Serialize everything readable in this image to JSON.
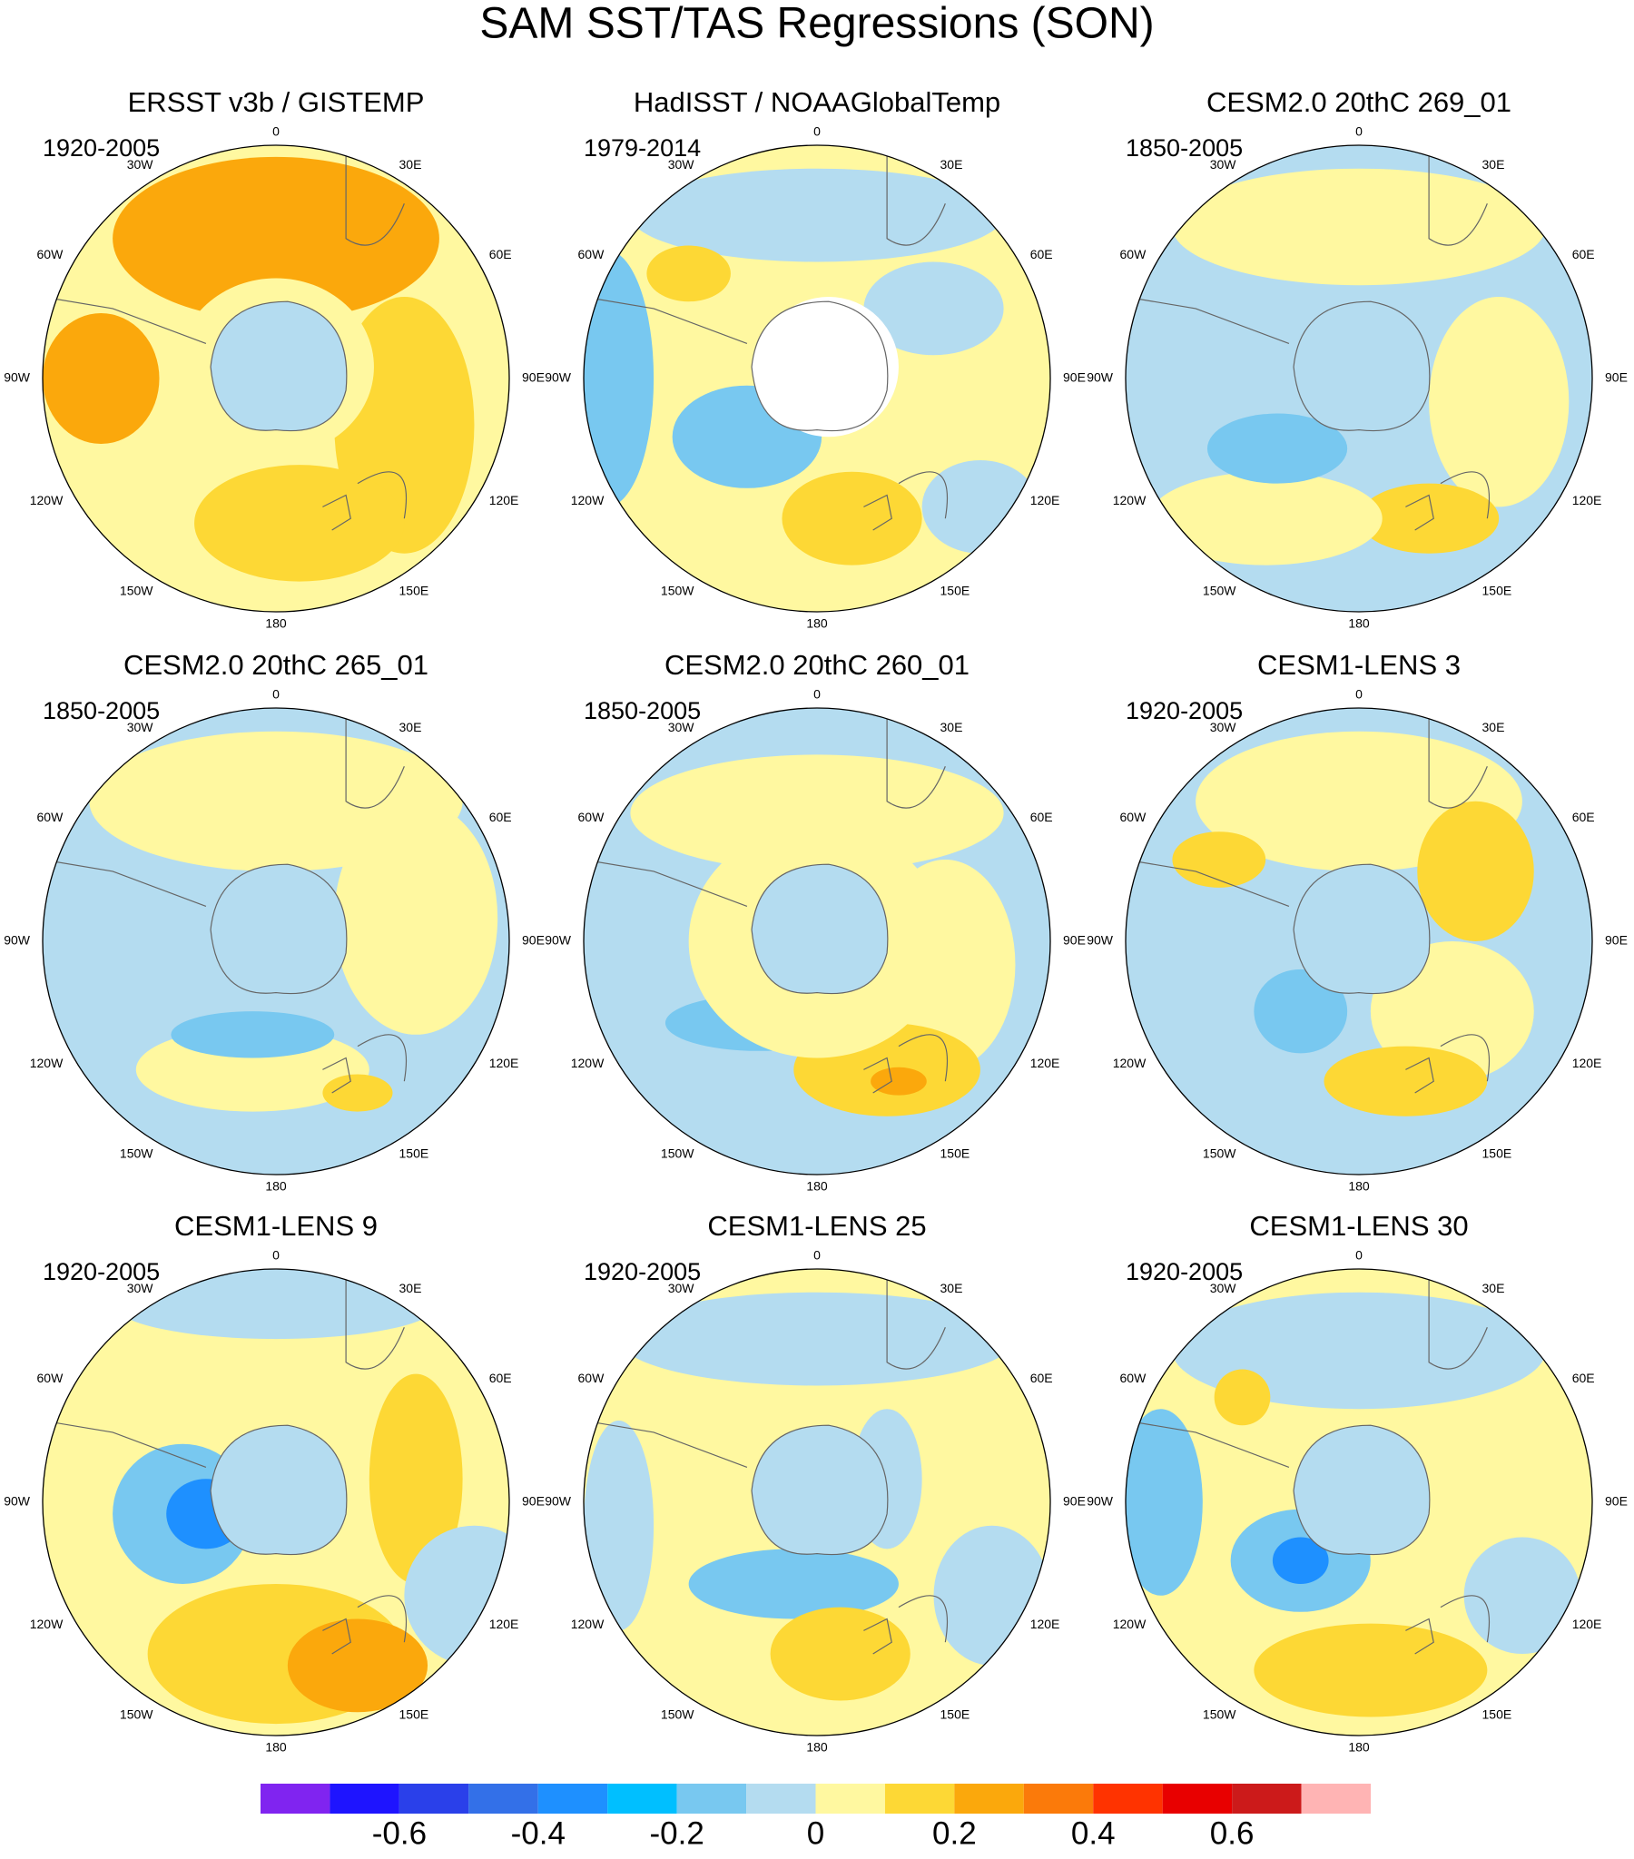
{
  "title": "SAM SST/TAS Regressions (SON)",
  "longitude_labels": [
    "0",
    "30E",
    "60E",
    "90E",
    "120E",
    "150E",
    "180",
    "150W",
    "120W",
    "90W",
    "60W",
    "30W"
  ],
  "panels": [
    {
      "title": "ERSST v3b / GISTEMP",
      "period": "1920-2005"
    },
    {
      "title": "HadISST / NOAAGlobalTemp",
      "period": "1979-2014"
    },
    {
      "title": "CESM2.0 20thC 269_01",
      "period": "1850-2005"
    },
    {
      "title": "CESM2.0 20thC 265_01",
      "period": "1850-2005"
    },
    {
      "title": "CESM2.0 20thC 260_01",
      "period": "1850-2005"
    },
    {
      "title": "CESM1-LENS 3",
      "period": "1920-2005"
    },
    {
      "title": "CESM1-LENS 9",
      "period": "1920-2005"
    },
    {
      "title": "CESM1-LENS 25",
      "period": "1920-2005"
    },
    {
      "title": "CESM1-LENS 30",
      "period": "1920-2005"
    }
  ],
  "colorbar": {
    "colors": [
      "#8024f0",
      "#1e14ff",
      "#2a40ea",
      "#3370e8",
      "#1e90ff",
      "#00bfff",
      "#78c8f0",
      "#b4dcf0",
      "#fff8a0",
      "#fdd835",
      "#fba80c",
      "#fb7a0a",
      "#ff3300",
      "#e80000",
      "#cc1a1a",
      "#ffb4b4"
    ],
    "lim": [
      -0.8,
      0.8
    ],
    "ticks": [
      -0.6,
      -0.4,
      -0.2,
      0,
      0.2,
      0.4,
      0.6
    ]
  }
}
